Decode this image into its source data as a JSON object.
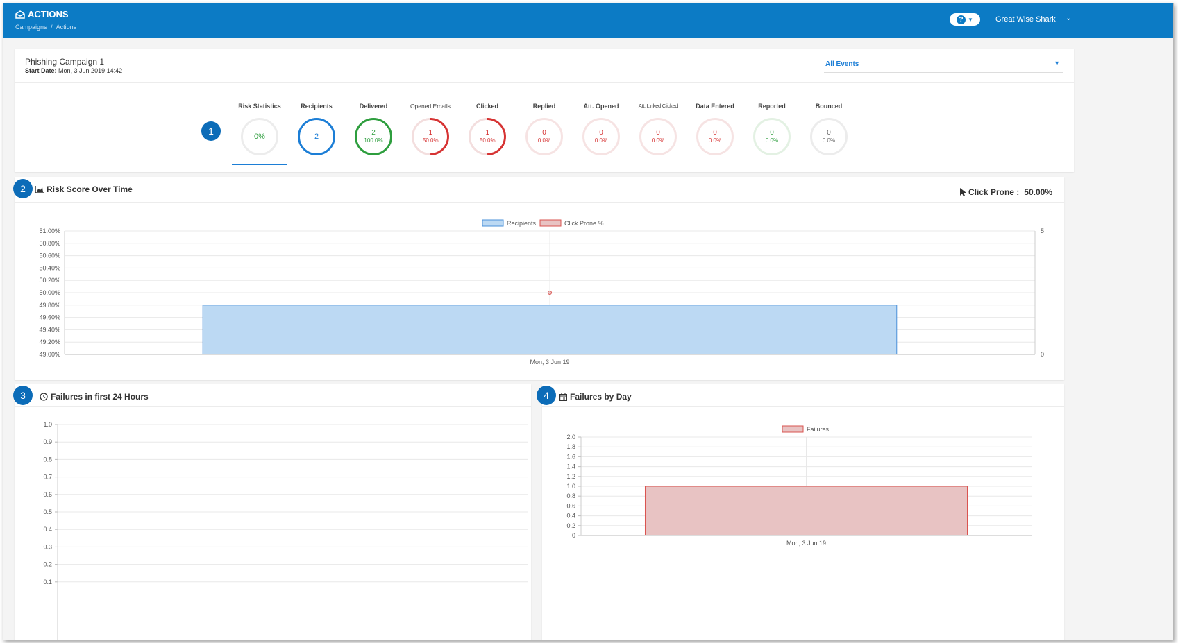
{
  "header": {
    "app_title": "ACTIONS",
    "breadcrumbs": [
      "Campaigns",
      "/",
      "Actions"
    ],
    "help_label": "?",
    "user_name": "Great Wise Shark"
  },
  "campaign": {
    "name": "Phishing Campaign 1",
    "start_label": "Start Date:",
    "start_value": "Mon, 3 Jun 2019 14:42",
    "event_filter": "All Events"
  },
  "badges": [
    "1",
    "2",
    "3",
    "4"
  ],
  "stats": [
    {
      "label": "Risk Statistics",
      "value": "0%",
      "percent": "",
      "color": "#2e9e3e"
    },
    {
      "label": "Recipients",
      "value": "2",
      "percent": "",
      "color": "#1c7ed6"
    },
    {
      "label": "Delivered",
      "value": "2",
      "percent": "100.0%",
      "color": "#2e9e3e"
    },
    {
      "label": "Opened Emails",
      "value": "1",
      "percent": "50.0%",
      "color": "#d63333"
    },
    {
      "label": "Clicked",
      "value": "1",
      "percent": "50.0%",
      "color": "#d63333"
    },
    {
      "label": "Replied",
      "value": "0",
      "percent": "0.0%",
      "color": "#d63333"
    },
    {
      "label": "Att. Opened",
      "value": "0",
      "percent": "0.0%",
      "color": "#d63333"
    },
    {
      "label": "Att. Linked Clicked",
      "value": "0",
      "percent": "0.0%",
      "color": "#d63333"
    },
    {
      "label": "Data Entered",
      "value": "0",
      "percent": "0.0%",
      "color": "#d63333"
    },
    {
      "label": "Reported",
      "value": "0",
      "percent": "0.0%",
      "color": "#2e9e3e"
    },
    {
      "label": "Bounced",
      "value": "0",
      "percent": "0.0%",
      "color": "#666666"
    }
  ],
  "risk_section": {
    "title": "Risk Score Over Time",
    "click_prone_label": "Click Prone :",
    "click_prone_value": "50.00%"
  },
  "failures24_section": {
    "title": "Failures in first 24 Hours"
  },
  "failuresday_section": {
    "title": "Failures by Day"
  },
  "colors": {
    "brand": "#0c7bc5",
    "recipients_fill": "#bcd9f3",
    "recipients_stroke": "#4a90d9",
    "failure_fill": "#e8c3c3",
    "failure_stroke": "#d9534f"
  },
  "chart_data": [
    {
      "type": "bar",
      "title": "Risk Score Over Time",
      "categories": [
        "Mon, 3 Jun 19"
      ],
      "series": [
        {
          "name": "Recipients",
          "type": "bar",
          "axis": "right",
          "values": [
            2
          ]
        },
        {
          "name": "Click Prone %",
          "type": "line",
          "axis": "left",
          "values": [
            50.0
          ]
        }
      ],
      "y_left_ticks": [
        "51.00%",
        "50.80%",
        "50.60%",
        "50.40%",
        "50.20%",
        "50.00%",
        "49.80%",
        "49.60%",
        "49.40%",
        "49.20%",
        "49.00%"
      ],
      "ylim_left": [
        49,
        51
      ],
      "y_right_ticks": [
        "5",
        "0"
      ],
      "ylim_right": [
        0,
        5
      ],
      "legend": "top",
      "grid": true
    },
    {
      "type": "line",
      "title": "Failures in first 24 Hours",
      "categories": [],
      "series": [],
      "y_ticks": [
        "1.0",
        "0.9",
        "0.8",
        "0.7",
        "0.6",
        "0.5",
        "0.4",
        "0.3",
        "0.2",
        "0.1"
      ],
      "ylim": [
        0,
        1
      ],
      "grid": true
    },
    {
      "type": "bar",
      "title": "Failures by Day",
      "categories": [
        "Mon, 3 Jun 19"
      ],
      "series": [
        {
          "name": "Failures",
          "values": [
            1
          ]
        }
      ],
      "y_ticks": [
        "2.0",
        "1.8",
        "1.6",
        "1.4",
        "1.2",
        "1.0",
        "0.8",
        "0.6",
        "0.4",
        "0.2",
        "0"
      ],
      "ylim": [
        0,
        2
      ],
      "legend": "top",
      "grid": true
    }
  ]
}
